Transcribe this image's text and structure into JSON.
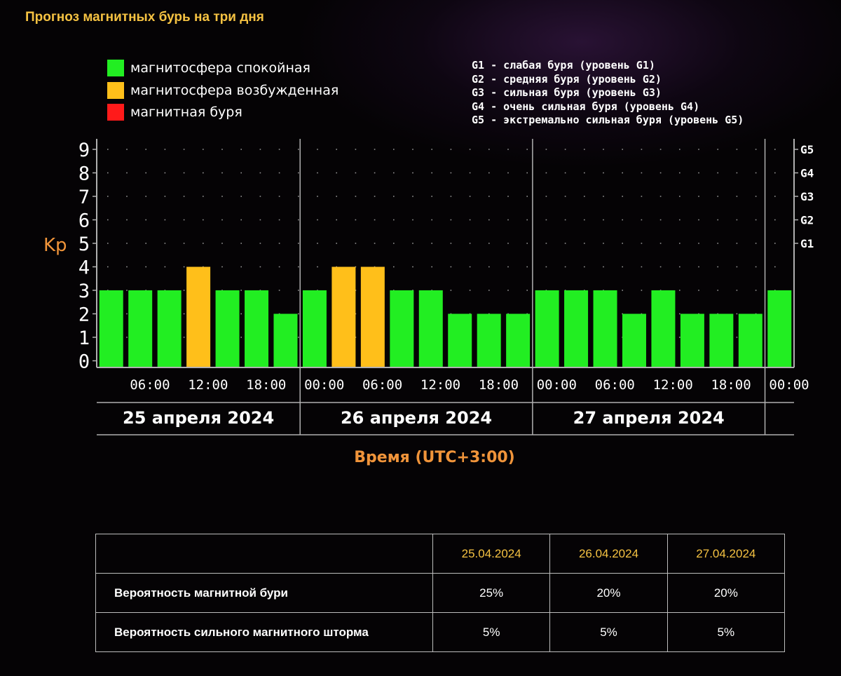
{
  "page_title": "Прогноз магнитных бурь на три дня",
  "legend": [
    {
      "label": "магнитосфера спокойная",
      "color": "#22ee22"
    },
    {
      "label": "магнитосфера возбужденная",
      "color": "#ffbf1a"
    },
    {
      "label": "магнитная буря",
      "color": "#ff1a1a"
    }
  ],
  "g_levels": [
    "G1 - слабая буря (уровень G1)",
    "G2 - средняя буря (уровень G2)",
    "G3 - сильная буря (уровень G3)",
    "G4 - очень сильная буря (уровень G4)",
    "G5 - экстремально сильная буря (уровень G5)"
  ],
  "chart_data": {
    "type": "bar",
    "ylabel": "Kp",
    "xlabel": "Время (UTC+3:00)",
    "ylim": [
      0,
      9
    ],
    "y_ticks": [
      "0",
      "1",
      "2",
      "3",
      "4",
      "5",
      "6",
      "7",
      "8",
      "9"
    ],
    "g_ticks": [
      {
        "label": "G1",
        "kp": 5
      },
      {
        "label": "G2",
        "kp": 6
      },
      {
        "label": "G3",
        "kp": 7
      },
      {
        "label": "G4",
        "kp": 8
      },
      {
        "label": "G5",
        "kp": 9
      }
    ],
    "x_ticks": [
      "06:00",
      "12:00",
      "18:00",
      "00:00",
      "06:00",
      "12:00",
      "18:00",
      "00:00",
      "06:00",
      "12:00",
      "18:00",
      "00:00"
    ],
    "days": [
      "25 апреля 2024",
      "26 апреля 2024",
      "27 апреля 2024"
    ],
    "values": [
      3,
      3,
      3,
      4,
      3,
      3,
      2,
      3,
      4,
      4,
      3,
      3,
      2,
      2,
      2,
      3,
      3,
      3,
      2,
      3,
      2,
      2,
      2,
      3
    ],
    "colors": {
      "quiet": "#22ee22",
      "active": "#ffbf1a",
      "storm": "#ff1a1a"
    },
    "grid": "dotted"
  },
  "table": {
    "headers": [
      "",
      "25.04.2024",
      "26.04.2024",
      "27.04.2024"
    ],
    "rows": [
      {
        "label": "Вероятность магнитной бури",
        "values": [
          "25%",
          "20%",
          "20%"
        ]
      },
      {
        "label": "Вероятность сильного магнитного шторма",
        "values": [
          "5%",
          "5%",
          "5%"
        ]
      }
    ]
  }
}
